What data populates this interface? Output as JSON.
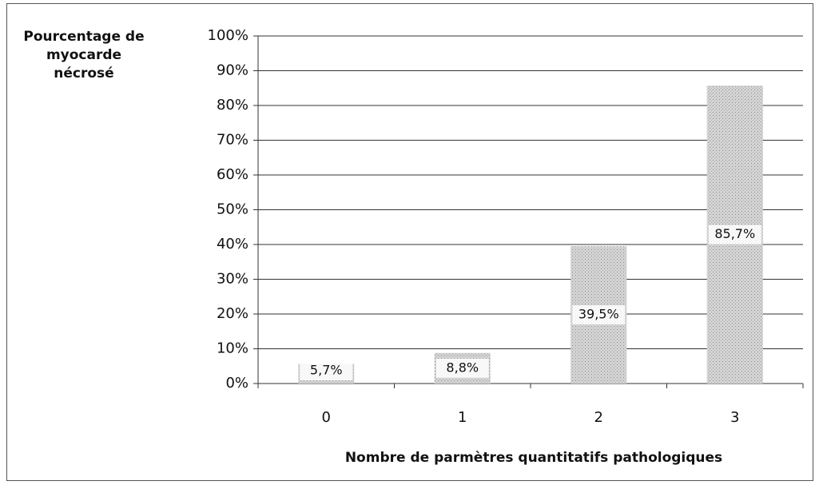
{
  "chart_data": {
    "type": "bar",
    "ylabel": "Pourcentage de myocarde nécrosé",
    "xlabel": "Nombre de parmètres quantitatifs pathologiques",
    "categories": [
      "0",
      "1",
      "2",
      "3"
    ],
    "values": [
      5.7,
      8.8,
      39.5,
      85.7
    ],
    "value_labels": [
      "5,7%",
      "8,8%",
      "39,5%",
      "85,7%"
    ],
    "color": "#d4d4d4",
    "ylim": [
      0,
      100
    ],
    "yticks": [
      {
        "value": 0,
        "label": "0%"
      },
      {
        "value": 10,
        "label": "10%"
      },
      {
        "value": 20,
        "label": "20%"
      },
      {
        "value": 30,
        "label": "30%"
      },
      {
        "value": 40,
        "label": "40%"
      },
      {
        "value": 50,
        "label": "50%"
      },
      {
        "value": 60,
        "label": "60%"
      },
      {
        "value": 70,
        "label": "70%"
      },
      {
        "value": 80,
        "label": "80%"
      },
      {
        "value": 90,
        "label": "90%"
      },
      {
        "value": 100,
        "label": "100%"
      }
    ],
    "grid": true
  }
}
